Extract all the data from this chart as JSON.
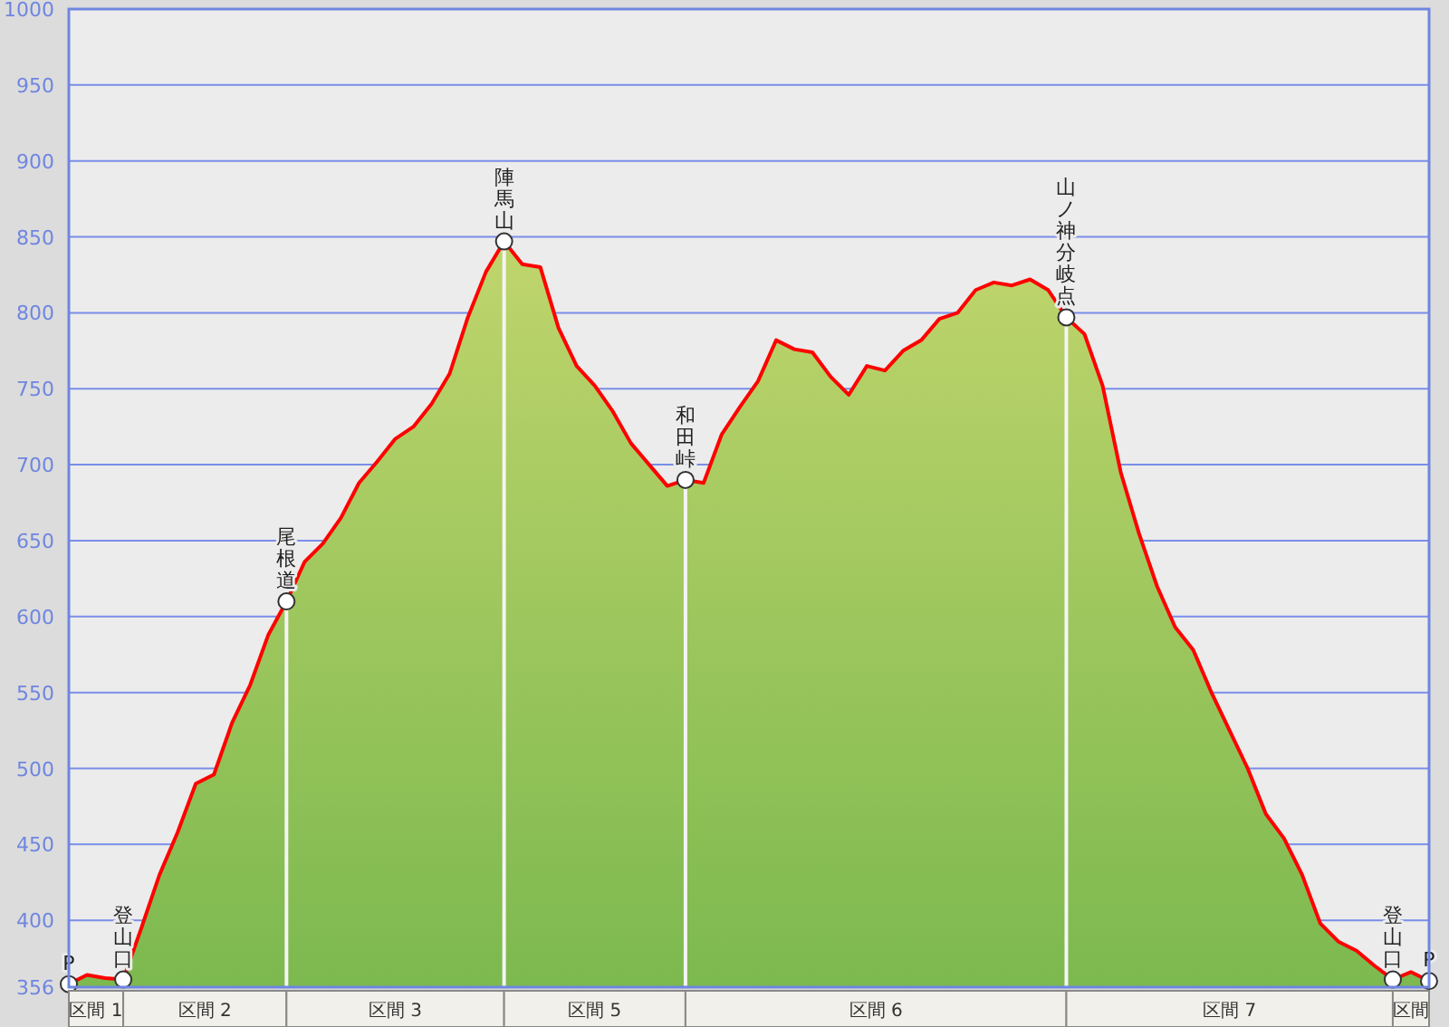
{
  "chart_data": {
    "type": "area",
    "categories": [
      null,
      null,
      null,
      null,
      null,
      null,
      null,
      null,
      null,
      null,
      null,
      null,
      null,
      null,
      null,
      null,
      null,
      null,
      null,
      null,
      null,
      null,
      null,
      null,
      null,
      null,
      null,
      null,
      null,
      null,
      null,
      null,
      null,
      null,
      null,
      null,
      null,
      null,
      null,
      null,
      null,
      null,
      null,
      null,
      null,
      null,
      null,
      null,
      null,
      null,
      null,
      null,
      null,
      null,
      null,
      null,
      null,
      null,
      null,
      null,
      null,
      null,
      null,
      null,
      null,
      null,
      null,
      null,
      null,
      null,
      null,
      null,
      null,
      null,
      null,
      null
    ],
    "ylim": [
      356,
      1000
    ],
    "yticks": [
      356,
      400,
      450,
      500,
      550,
      600,
      650,
      700,
      750,
      800,
      850,
      900,
      950,
      1000
    ],
    "grid": "y",
    "series": [
      {
        "color": "#ff0000",
        "values": [
          358,
          364,
          362,
          361,
          395,
          430,
          458,
          490,
          496,
          530,
          555,
          588,
          610,
          636,
          648,
          665,
          688,
          702,
          717,
          725,
          740,
          760,
          797,
          827,
          847,
          832,
          830,
          790,
          765,
          752,
          735,
          714,
          700,
          686,
          690,
          688,
          720,
          738,
          755,
          782,
          776,
          774,
          758,
          746,
          765,
          762,
          775,
          782,
          796,
          800,
          815,
          820,
          818,
          822,
          815,
          797,
          786,
          752,
          695,
          655,
          620,
          593,
          578,
          550,
          525,
          500,
          470,
          454,
          430,
          398,
          386,
          380,
          370,
          361,
          366,
          360
        ]
      },
      {
        "type": "scatter",
        "color": "#ffffff",
        "marker": "circle",
        "values": [
          358,
          null,
          null,
          361,
          null,
          null,
          null,
          null,
          null,
          null,
          null,
          null,
          610,
          null,
          null,
          null,
          null,
          null,
          null,
          null,
          null,
          null,
          null,
          null,
          847,
          null,
          null,
          null,
          null,
          null,
          null,
          null,
          null,
          null,
          690,
          null,
          null,
          null,
          null,
          null,
          null,
          null,
          null,
          null,
          null,
          null,
          null,
          null,
          null,
          null,
          null,
          null,
          null,
          null,
          null,
          797,
          null,
          null,
          null,
          null,
          null,
          null,
          null,
          null,
          null,
          null,
          null,
          null,
          null,
          null,
          null,
          null,
          null,
          361,
          null,
          360
        ],
        "value_labels": [
          "P",
          null,
          null,
          "登山口",
          null,
          null,
          null,
          null,
          null,
          null,
          null,
          null,
          "尾根道",
          null,
          null,
          null,
          null,
          null,
          null,
          null,
          null,
          null,
          null,
          null,
          "陣馬山",
          null,
          null,
          null,
          null,
          null,
          null,
          null,
          null,
          null,
          "和田峠",
          null,
          null,
          null,
          null,
          null,
          null,
          null,
          null,
          null,
          null,
          null,
          null,
          null,
          null,
          null,
          null,
          null,
          null,
          null,
          null,
          "山ノ神分岐点",
          null,
          null,
          null,
          null,
          null,
          null,
          null,
          null,
          null,
          null,
          null,
          null,
          null,
          null,
          null,
          null,
          null,
          "登山口",
          null,
          "P"
        ]
      }
    ],
    "annotations": [
      "区間 1",
      "区間 2",
      "区間 3",
      "区間 5",
      "区間 6",
      "区間 7",
      "区間"
    ]
  }
}
